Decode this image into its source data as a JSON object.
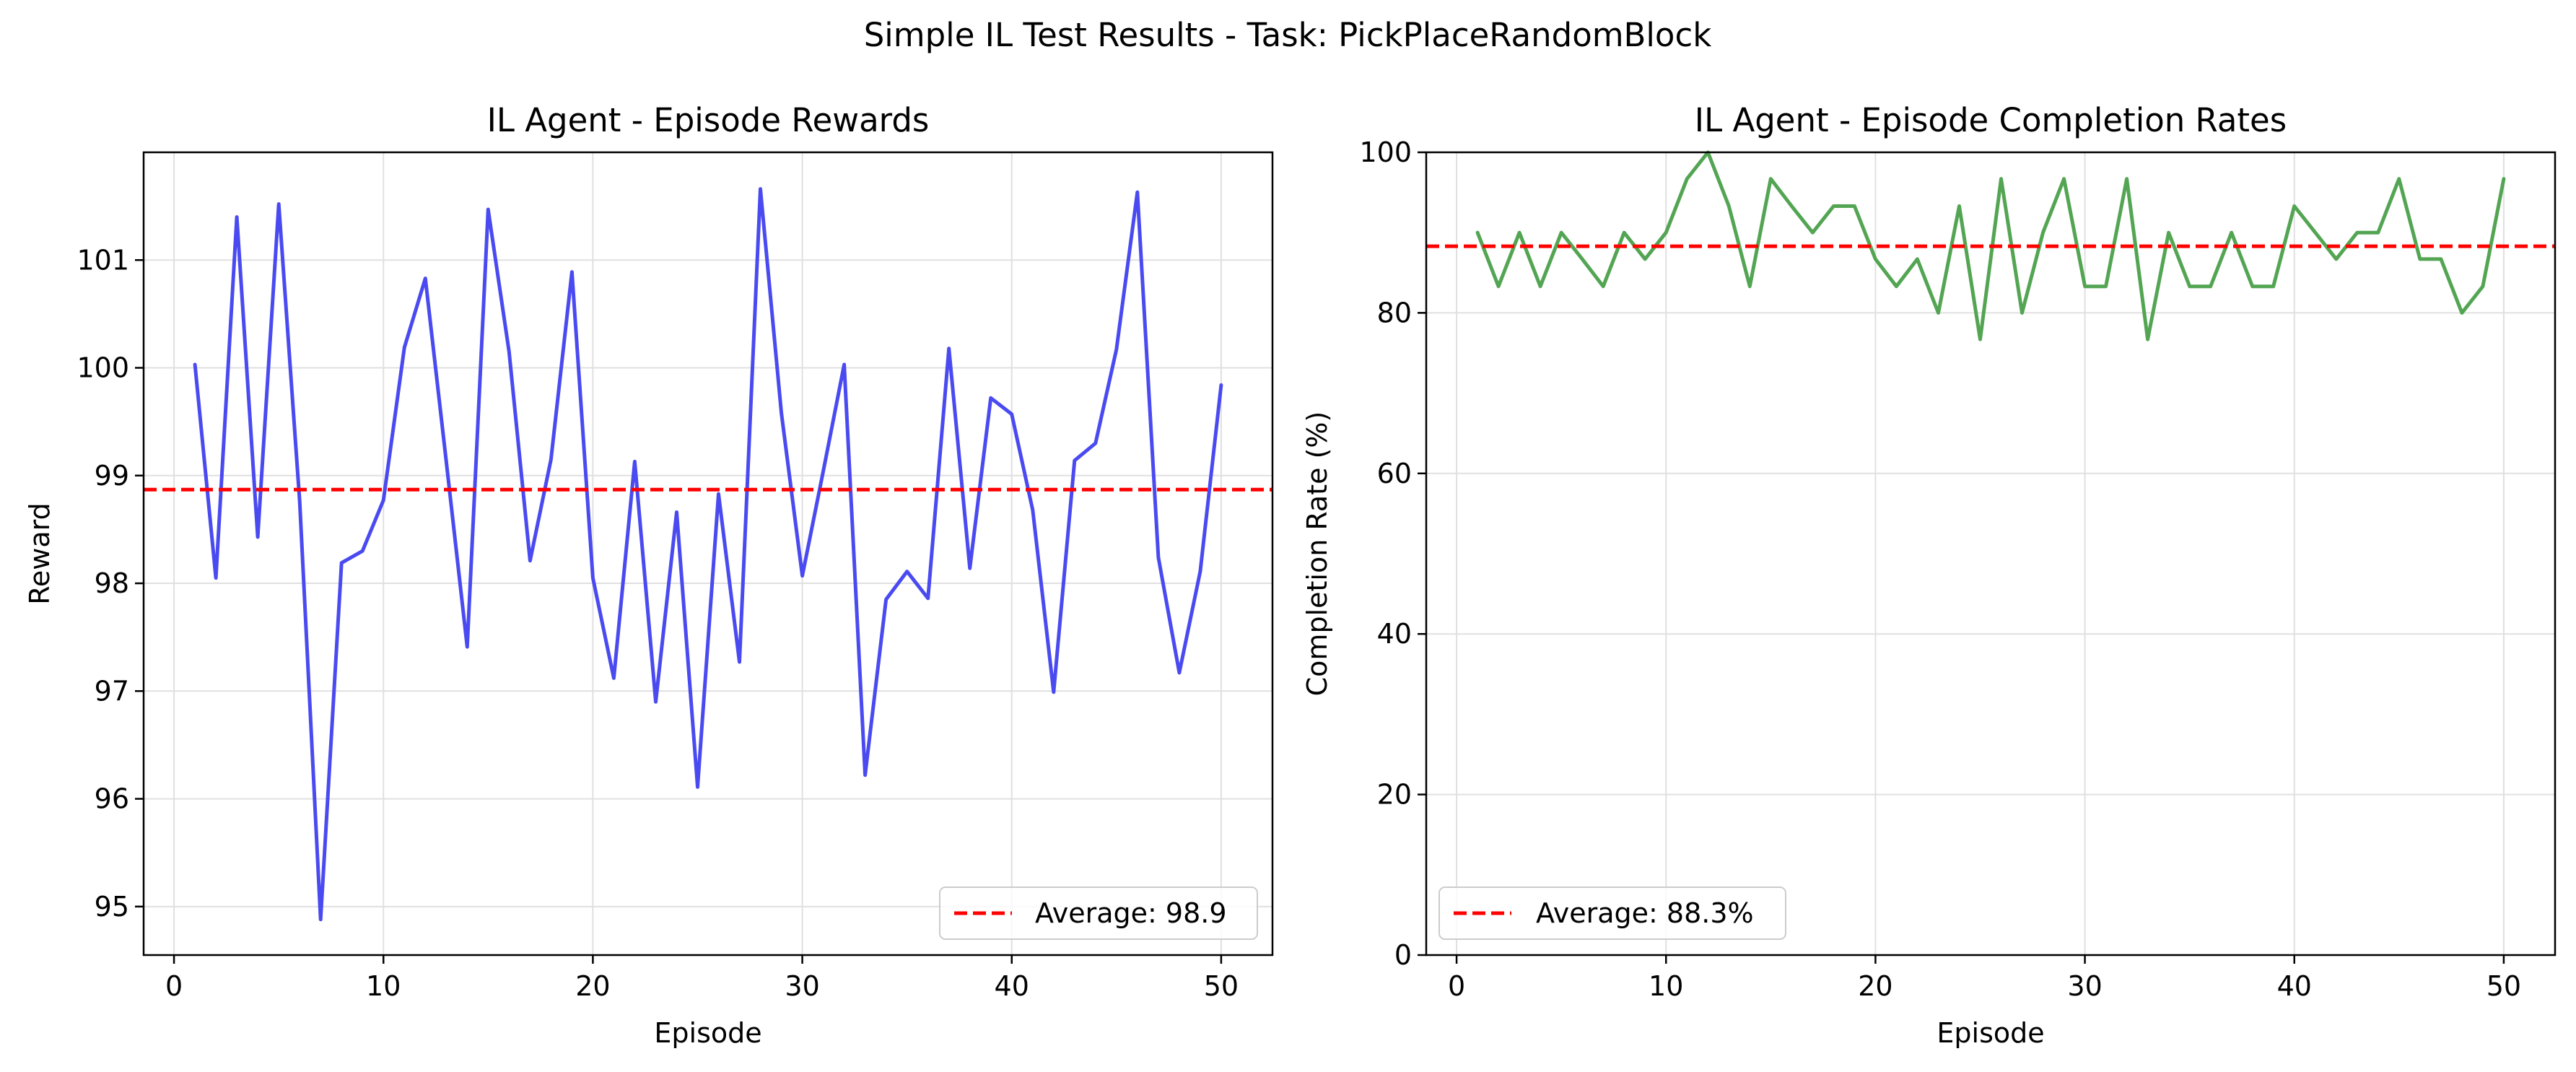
{
  "figure": {
    "suptitle": "Simple IL Test Results - Task: PickPlaceRandomBlock"
  },
  "chart_data": [
    {
      "type": "line",
      "title": "IL Agent - Episode Rewards",
      "xlabel": "Episode",
      "ylabel": "Reward",
      "xlim": [
        -1.45,
        52.45
      ],
      "ylim": [
        94.55,
        102.0
      ],
      "xticks": [
        0,
        10,
        20,
        30,
        40,
        50
      ],
      "yticks": [
        95,
        96,
        97,
        98,
        99,
        100,
        101
      ],
      "grid": true,
      "legend_position": "lower right",
      "series": [
        {
          "color": "#4040f0",
          "x": [
            1,
            2,
            3,
            4,
            5,
            6,
            7,
            8,
            9,
            10,
            11,
            12,
            13,
            14,
            15,
            16,
            17,
            18,
            19,
            20,
            21,
            22,
            23,
            24,
            25,
            26,
            27,
            28,
            29,
            30,
            31,
            32,
            33,
            34,
            35,
            36,
            37,
            38,
            39,
            40,
            41,
            42,
            43,
            44,
            45,
            46,
            47,
            48,
            49,
            50
          ],
          "values": [
            100.03,
            98.05,
            101.4,
            98.43,
            101.52,
            98.76,
            94.88,
            98.19,
            98.3,
            98.77,
            100.19,
            100.83,
            99.13,
            97.41,
            101.47,
            100.15,
            98.21,
            99.15,
            100.89,
            98.05,
            97.12,
            99.13,
            96.9,
            98.66,
            96.11,
            98.83,
            97.27,
            101.66,
            99.58,
            98.07,
            99.04,
            100.03,
            96.22,
            97.85,
            98.11,
            97.86,
            100.18,
            98.14,
            99.72,
            99.57,
            98.68,
            96.99,
            99.14,
            99.3,
            100.17,
            101.63,
            98.24,
            97.17,
            98.11,
            99.84
          ]
        },
        {
          "name": "Average: 98.9",
          "color": "#ff0000",
          "style": "dashed",
          "y": 98.87
        }
      ]
    },
    {
      "type": "line",
      "title": "IL Agent - Episode Completion Rates",
      "xlabel": "Episode",
      "ylabel": "Completion Rate (%)",
      "xlim": [
        -1.45,
        52.45
      ],
      "ylim": [
        0,
        100
      ],
      "xticks": [
        0,
        10,
        20,
        30,
        40,
        50
      ],
      "yticks": [
        0,
        20,
        40,
        60,
        80,
        100
      ],
      "grid": true,
      "legend_position": "lower left",
      "series": [
        {
          "color": "#4aa04a",
          "x": [
            1,
            2,
            3,
            4,
            5,
            6,
            7,
            8,
            9,
            10,
            11,
            12,
            13,
            14,
            15,
            16,
            17,
            18,
            19,
            20,
            21,
            22,
            23,
            24,
            25,
            26,
            27,
            28,
            29,
            30,
            31,
            32,
            33,
            34,
            35,
            36,
            37,
            38,
            39,
            40,
            41,
            42,
            43,
            44,
            45,
            46,
            47,
            48,
            49,
            50
          ],
          "values": [
            90.0,
            83.3,
            90.0,
            83.3,
            90.0,
            86.7,
            83.3,
            90.0,
            86.7,
            90.0,
            96.7,
            100.0,
            93.3,
            83.3,
            96.7,
            93.3,
            90.0,
            93.3,
            93.3,
            86.7,
            83.3,
            86.7,
            80.0,
            93.3,
            76.7,
            96.7,
            80.0,
            90.0,
            96.7,
            83.3,
            83.3,
            96.7,
            76.7,
            90.0,
            83.3,
            83.3,
            90.0,
            83.3,
            83.3,
            93.3,
            90.0,
            86.7,
            90.0,
            90.0,
            96.7,
            86.7,
            86.7,
            80.0,
            83.3,
            96.7
          ]
        },
        {
          "name": "Average: 88.3%",
          "color": "#ff0000",
          "style": "dashed",
          "y": 88.3
        }
      ]
    }
  ]
}
